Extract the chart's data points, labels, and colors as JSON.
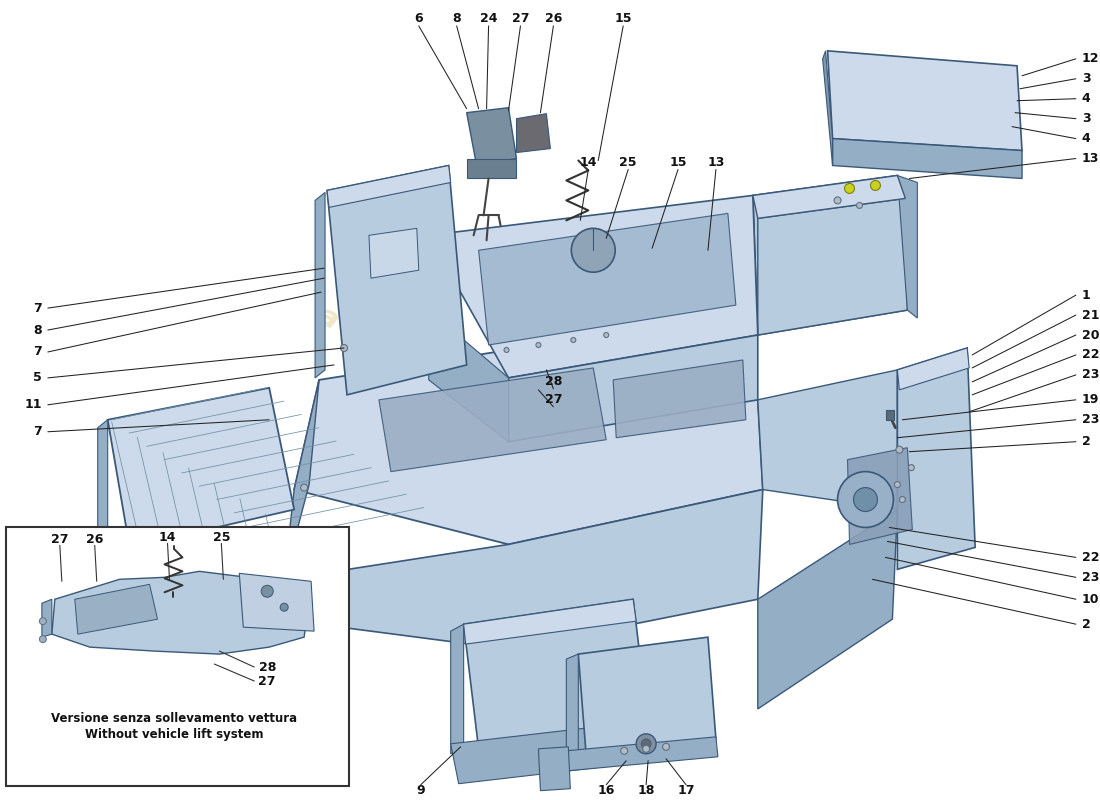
{
  "bg": "#ffffff",
  "pf_main": "#b8cce0",
  "pf_top": "#cddaeb",
  "pf_dark": "#94aec5",
  "pf_shadow": "#8098b0",
  "ec": "#3a5878",
  "wm_color": "#d4b860",
  "it_label": "Versione senza sollevamento vettura",
  "en_label": "Without vehicle lift system",
  "grid_color": "#7090a8",
  "bolt_yellow": "#c8d020",
  "bolt_yellow_ec": "#808010",
  "bolt_gray": "#b0bcc8",
  "bolt_gray_ec": "#607080"
}
